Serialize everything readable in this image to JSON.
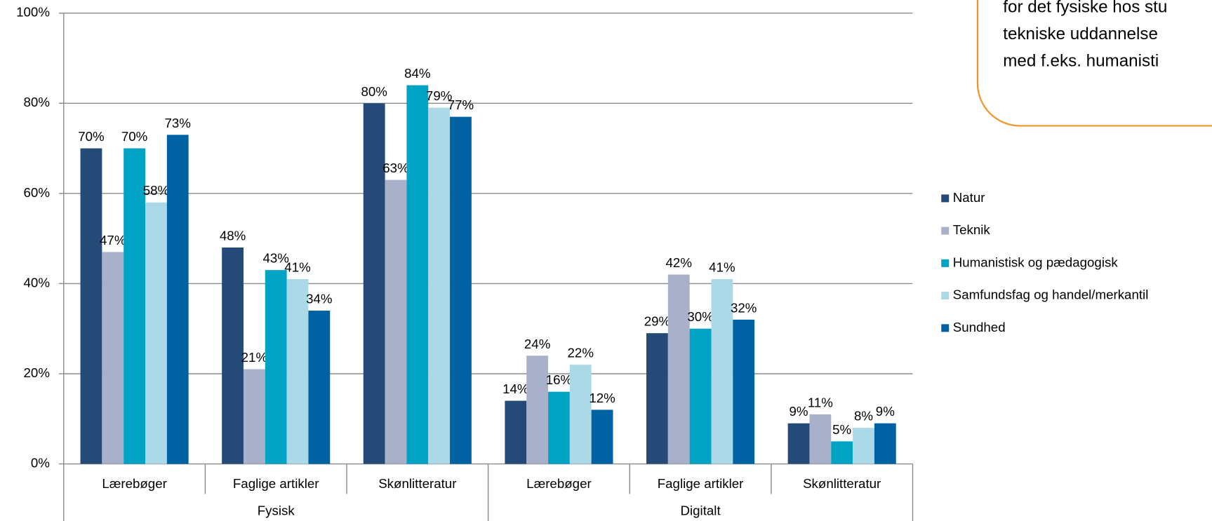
{
  "chart_data": {
    "type": "bar",
    "categories": [
      "Lærebøger",
      "Faglige artikler",
      "Skønlitteratur",
      "Lærebøger",
      "Faglige artikler",
      "Skønlitteratur"
    ],
    "groups": [
      "Fysisk",
      "Digitalt"
    ],
    "series": [
      {
        "name": "Natur",
        "color": "#264a77",
        "values": [
          70,
          48,
          80,
          14,
          29,
          9
        ],
        "value_labels": [
          "70%",
          "48%",
          "80%",
          "14%",
          "29%",
          "9%"
        ]
      },
      {
        "name": "Teknik",
        "color": "#a9b0c9",
        "values": [
          47,
          21,
          63,
          24,
          42,
          11
        ],
        "value_labels": [
          "47%",
          "21%",
          "63%",
          "24%",
          "42%",
          "11%"
        ]
      },
      {
        "name": "Humanistisk og pædagogisk",
        "color": "#00a3c4",
        "values": [
          70,
          43,
          84,
          16,
          30,
          5
        ],
        "value_labels": [
          "70%",
          "43%",
          "84%",
          "16%",
          "30%",
          "5%"
        ]
      },
      {
        "name": "Samfundsfag og handel/merkantil",
        "color": "#acd9e8",
        "values": [
          58,
          41,
          79,
          22,
          41,
          8
        ],
        "value_labels": [
          "58%",
          "41%",
          "79%",
          "22%",
          "41%",
          "8%"
        ]
      },
      {
        "name": "Sundhed",
        "color": "#0062a3",
        "values": [
          73,
          34,
          77,
          12,
          32,
          9
        ],
        "value_labels": [
          "73%",
          "34%",
          "77%",
          "12%",
          "32%",
          "9%"
        ]
      }
    ],
    "ylim": [
      0,
      100
    ],
    "yticks": [
      {
        "value": 0,
        "label": "0%"
      },
      {
        "value": 20,
        "label": "20%"
      },
      {
        "value": 40,
        "label": "40%"
      },
      {
        "value": 60,
        "label": "60%"
      },
      {
        "value": 80,
        "label": "80%"
      },
      {
        "value": 100,
        "label": "100%"
      }
    ],
    "grid": true,
    "annotation": [
      "for det fysiske hos stu",
      "tekniske uddannelse",
      "med f.eks. humanisti"
    ]
  }
}
